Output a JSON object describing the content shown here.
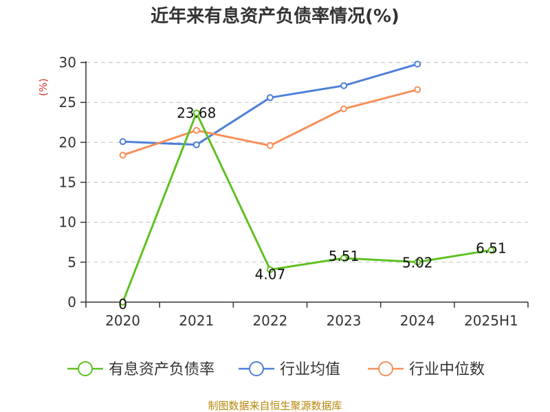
{
  "chart_data": {
    "type": "line",
    "title": "近年来有息资产负债率情况(%)",
    "ylabel": "(%)",
    "xlabel": "",
    "categories": [
      "2020",
      "2021",
      "2022",
      "2023",
      "2024",
      "2025H1"
    ],
    "ylim": [
      0,
      30
    ],
    "yticks": [
      0,
      5,
      10,
      15,
      20,
      25,
      30
    ],
    "grid": true,
    "legend_position": "bottom",
    "series": [
      {
        "name": "有息资产负债率",
        "color": "#5dc11f",
        "values": [
          0,
          23.68,
          4.07,
          5.51,
          5.02,
          6.51
        ],
        "data_labels": [
          "0",
          "23.68",
          "4.07",
          "5.51",
          "5.02",
          "6.51"
        ]
      },
      {
        "name": "行业均值",
        "color": "#4e7fd8",
        "values": [
          20.1,
          19.7,
          25.6,
          27.1,
          29.8,
          null
        ]
      },
      {
        "name": "行业中位数",
        "color": "#f5905a",
        "values": [
          18.4,
          21.5,
          19.6,
          24.2,
          26.6,
          null
        ]
      }
    ]
  },
  "source_text": "制图数据来自恒生聚源数据库"
}
